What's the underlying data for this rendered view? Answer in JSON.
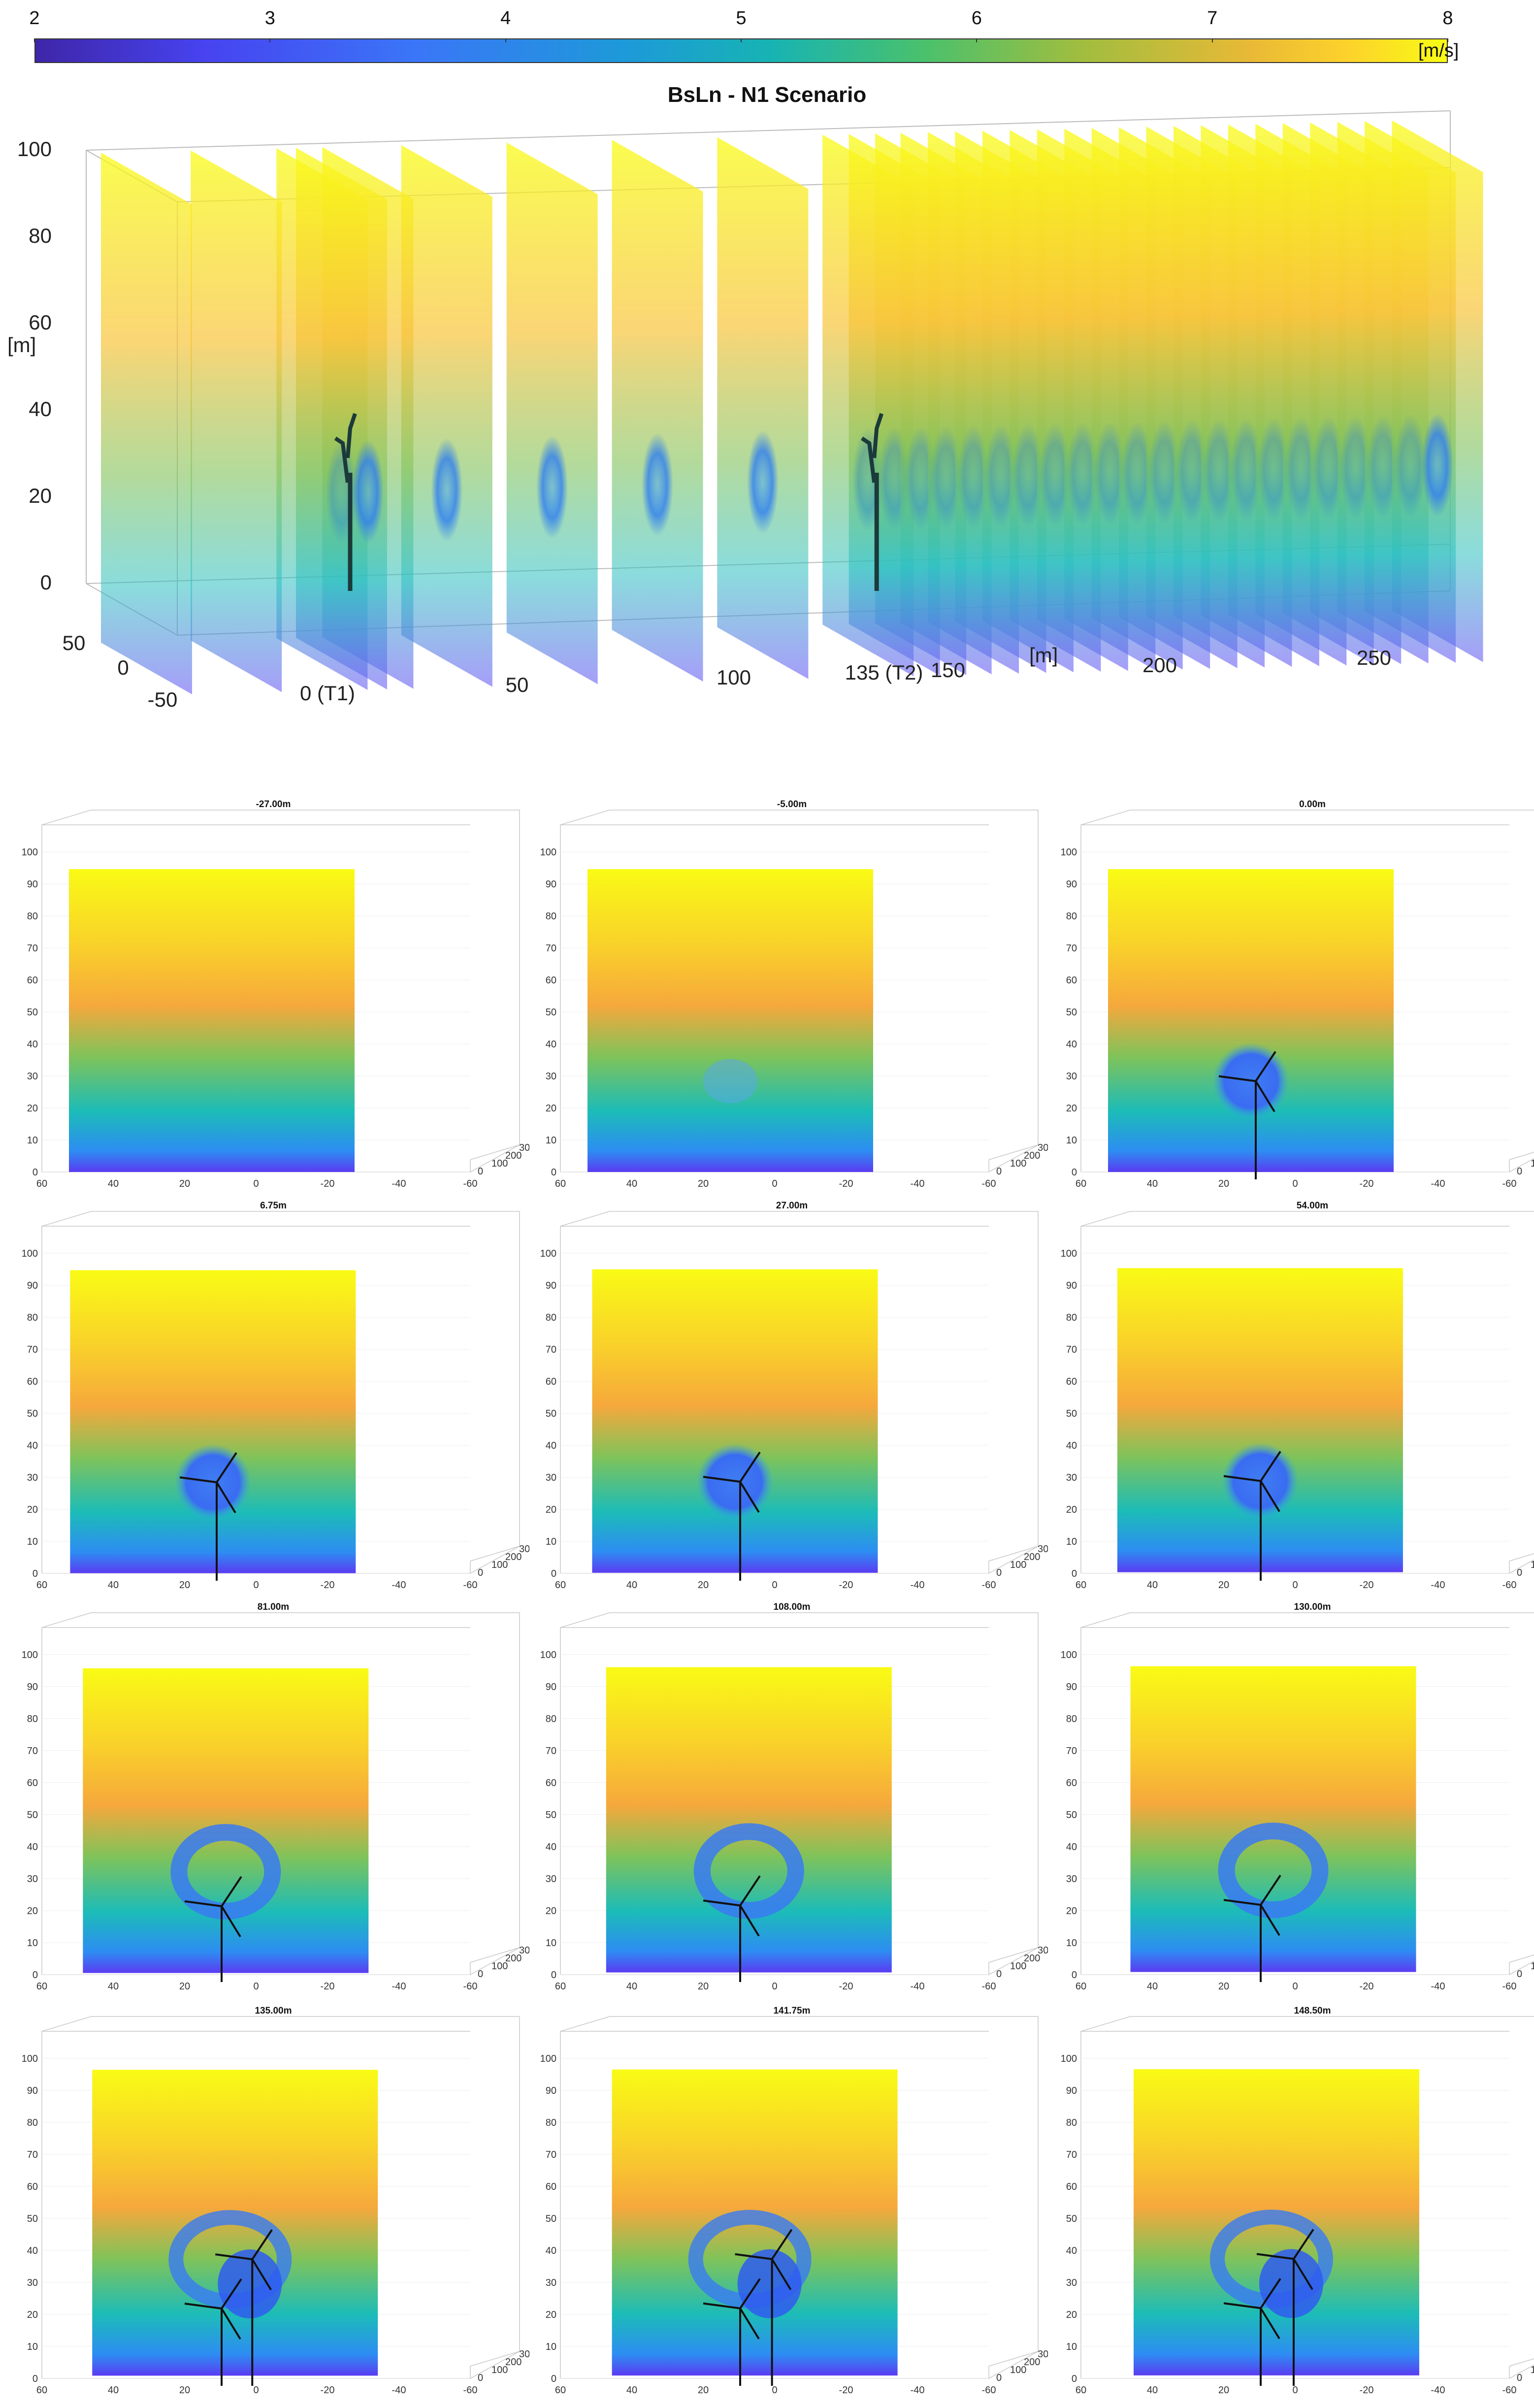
{
  "colorbar": {
    "ticks": [
      "2",
      "3",
      "4",
      "5",
      "6",
      "7",
      "8"
    ],
    "unit": "[m/s]",
    "range": [
      2,
      8
    ]
  },
  "main_plot": {
    "title": "BsLn - N1 Scenario",
    "z_label": "[m]",
    "x_label": "[m]",
    "z_ticks": [
      "0",
      "20",
      "40",
      "60",
      "80",
      "100"
    ],
    "y_ticks": [
      "50",
      "0",
      "-50"
    ],
    "x_ticks": [
      "0 (T1)",
      "50",
      "100",
      "135 (T2)",
      "150",
      "200",
      "250"
    ]
  },
  "panel_axes": {
    "z_ticks": [
      "0",
      "10",
      "20",
      "30",
      "40",
      "50",
      "60",
      "70",
      "80",
      "90",
      "100"
    ],
    "y_ticks": [
      "60",
      "40",
      "20",
      "0",
      "-20",
      "-40",
      "-60"
    ],
    "x_ticks": [
      "0",
      "100",
      "200",
      "300"
    ]
  },
  "chart_data": [
    {
      "type": "heatmap",
      "title": "BsLn - N1 Scenario",
      "description_values": "wake velocity slices along streamwise direction",
      "x_range": [
        -50,
        280
      ],
      "z_range": [
        0,
        100
      ],
      "y_range": [
        -60,
        60
      ],
      "turbine_positions_x": [
        0,
        135
      ],
      "colorbar_range": [
        2,
        8
      ],
      "unit": "[m/s]"
    },
    {
      "type": "heatmap",
      "panels": [
        {
          "title": "-27.00m",
          "x": -27.0,
          "turbines": 0,
          "wake": "none"
        },
        {
          "title": "-5.00m",
          "x": -5.0,
          "turbines": 0,
          "wake": "faint"
        },
        {
          "title": "0.00m",
          "x": 0.0,
          "turbines": 1,
          "wake": "disk"
        },
        {
          "title": "6.75m",
          "x": 6.75,
          "turbines": 1,
          "wake": "disk"
        },
        {
          "title": "27.00m",
          "x": 27.0,
          "turbines": 1,
          "wake": "disk"
        },
        {
          "title": "54.00m",
          "x": 54.0,
          "turbines": 1,
          "wake": "disk"
        },
        {
          "title": "81.00m",
          "x": 81.0,
          "turbines": 1,
          "wake": "ring"
        },
        {
          "title": "108.00m",
          "x": 108.0,
          "turbines": 1,
          "wake": "ring"
        },
        {
          "title": "130.00m",
          "x": 130.0,
          "turbines": 1,
          "wake": "ring"
        },
        {
          "title": "135.00m",
          "x": 135.0,
          "turbines": 2,
          "wake": "double"
        },
        {
          "title": "141.75m",
          "x": 141.75,
          "turbines": 2,
          "wake": "double"
        },
        {
          "title": "148.50m",
          "x": 148.5,
          "turbines": 2,
          "wake": "double"
        }
      ],
      "z_range": [
        0,
        100
      ],
      "y_range": [
        -60,
        60
      ],
      "x_axis_range": [
        0,
        300
      ]
    }
  ]
}
